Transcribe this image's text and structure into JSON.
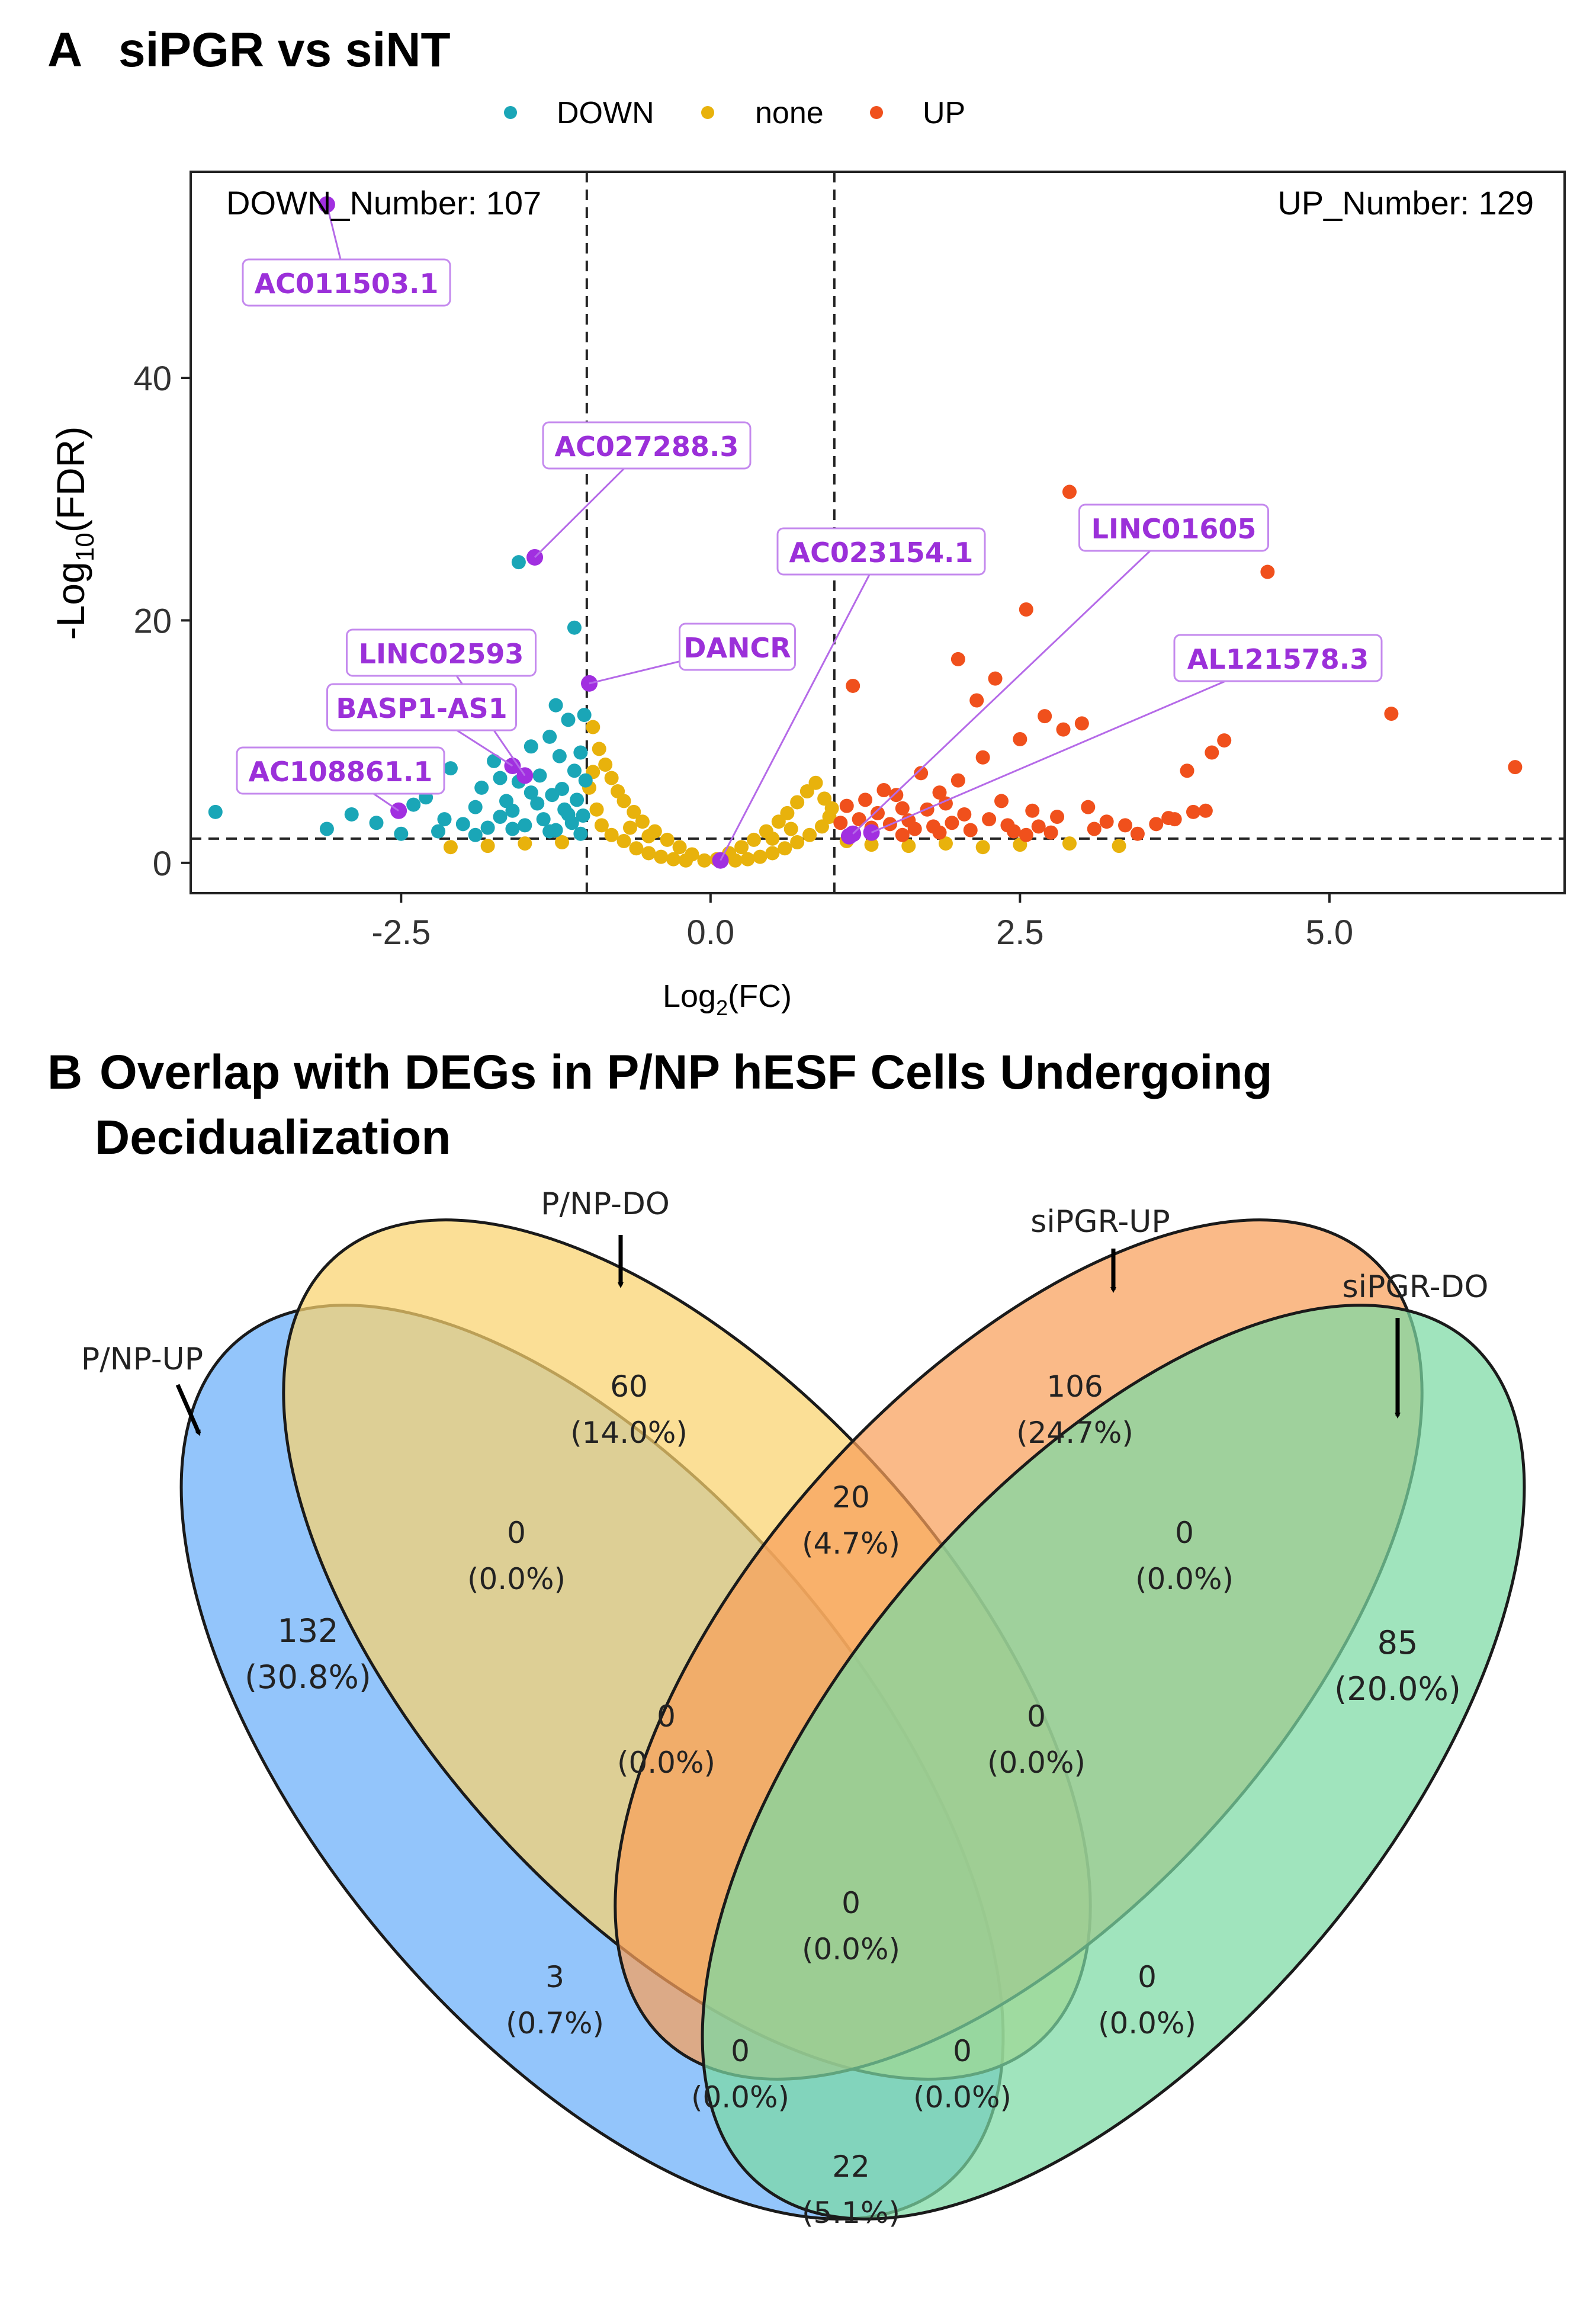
{
  "panel_a": {
    "letter": "A",
    "title": "siPGR vs siNT",
    "legend": [
      {
        "label": "DOWN",
        "color": "#1aa6b7"
      },
      {
        "label": "none",
        "color": "#e8b20c"
      },
      {
        "label": "UP",
        "color": "#f0501c"
      }
    ],
    "down_number_label": "DOWN_Number: 107",
    "up_number_label": "UP_Number: 129",
    "highlight_color": "#a12fe0"
  },
  "panel_b": {
    "letter": "B",
    "title_line1": "Overlap with DEGs in P/NP hESF Cells Undergoing",
    "title_line2": "Decidualization"
  },
  "chart_data": [
    {
      "type": "scatter",
      "title": "siPGR vs siNT",
      "xlabel_main": "Log",
      "xlabel_sub": "2",
      "xlabel_tail": "(FC)",
      "ylabel_main": "-Log",
      "ylabel_sub": "10",
      "ylabel_tail": "(FDR)",
      "xlim": [
        -4.2,
        6.9
      ],
      "ylim": [
        -2.5,
        57
      ],
      "xticks": [
        -2.5,
        0.0,
        2.5,
        5.0
      ],
      "xtick_labels": [
        "-2.5",
        "0.0",
        "2.5",
        "5.0"
      ],
      "yticks": [
        0,
        20,
        40
      ],
      "ytick_labels": [
        "0",
        "20",
        "40"
      ],
      "thresholds": {
        "log2fc": [
          -1,
          1
        ],
        "neg_log10_fdr": 2
      },
      "series": [
        {
          "name": "DOWN",
          "color": "#1aa6b7",
          "points": [
            [
              -4.0,
              4.2
            ],
            [
              -3.1,
              2.8
            ],
            [
              -2.9,
              4.0
            ],
            [
              -2.7,
              3.3
            ],
            [
              -2.5,
              2.4
            ],
            [
              -2.3,
              5.4
            ],
            [
              -2.2,
              2.6
            ],
            [
              -2.1,
              7.8
            ],
            [
              -2.0,
              3.2
            ],
            [
              -1.9,
              4.6
            ],
            [
              -1.85,
              6.2
            ],
            [
              -1.8,
              2.9
            ],
            [
              -1.75,
              8.4
            ],
            [
              -1.7,
              3.8
            ],
            [
              -1.65,
              5.1
            ],
            [
              -1.6,
              4.3
            ],
            [
              -1.55,
              6.7
            ],
            [
              -1.5,
              3.1
            ],
            [
              -1.45,
              9.6
            ],
            [
              -1.4,
              4.9
            ],
            [
              -1.38,
              7.2
            ],
            [
              -1.35,
              3.6
            ],
            [
              -1.3,
              10.4
            ],
            [
              -1.28,
              5.6
            ],
            [
              -1.25,
              2.7
            ],
            [
              -1.22,
              8.8
            ],
            [
              -1.2,
              6.1
            ],
            [
              -1.18,
              4.4
            ],
            [
              -1.15,
              11.8
            ],
            [
              -1.12,
              3.3
            ],
            [
              -1.1,
              7.6
            ],
            [
              -1.08,
              5.2
            ],
            [
              -1.05,
              9.1
            ],
            [
              -1.03,
              3.9
            ],
            [
              -1.02,
              12.2
            ],
            [
              -1.01,
              6.8
            ],
            [
              -1.1,
              19.4
            ],
            [
              -1.55,
              24.8
            ],
            [
              -1.05,
              2.4
            ],
            [
              -1.3,
              2.6
            ],
            [
              -1.6,
              2.8
            ],
            [
              -1.9,
              2.3
            ],
            [
              -2.15,
              3.6
            ],
            [
              -1.45,
              5.8
            ],
            [
              -1.7,
              7.0
            ],
            [
              -1.25,
              13.0
            ],
            [
              -1.15,
              4.0
            ],
            [
              -2.4,
              4.8
            ]
          ]
        },
        {
          "name": "none",
          "color": "#e8b20c",
          "points": [
            [
              -0.95,
              11.2
            ],
            [
              -0.9,
              9.4
            ],
            [
              -0.85,
              8.1
            ],
            [
              -0.8,
              7.0
            ],
            [
              -0.75,
              5.9
            ],
            [
              -0.7,
              5.1
            ],
            [
              -0.62,
              4.2
            ],
            [
              -0.55,
              3.4
            ],
            [
              -0.45,
              2.6
            ],
            [
              -0.35,
              1.9
            ],
            [
              -0.25,
              1.3
            ],
            [
              -0.15,
              0.7
            ],
            [
              -0.05,
              0.2
            ],
            [
              0.05,
              0.3
            ],
            [
              0.15,
              0.8
            ],
            [
              0.25,
              1.3
            ],
            [
              0.35,
              1.9
            ],
            [
              0.45,
              2.6
            ],
            [
              0.55,
              3.4
            ],
            [
              0.62,
              4.1
            ],
            [
              0.7,
              5.0
            ],
            [
              0.78,
              5.9
            ],
            [
              0.85,
              6.6
            ],
            [
              0.92,
              5.3
            ],
            [
              -0.98,
              6.2
            ],
            [
              -0.92,
              4.4
            ],
            [
              -0.88,
              3.1
            ],
            [
              -0.8,
              2.3
            ],
            [
              -0.7,
              1.8
            ],
            [
              -0.6,
              1.2
            ],
            [
              -0.5,
              0.8
            ],
            [
              -0.4,
              0.5
            ],
            [
              -0.3,
              0.3
            ],
            [
              -0.2,
              0.2
            ],
            [
              0.2,
              0.2
            ],
            [
              0.3,
              0.3
            ],
            [
              0.4,
              0.5
            ],
            [
              0.5,
              0.8
            ],
            [
              0.6,
              1.2
            ],
            [
              0.7,
              1.7
            ],
            [
              0.8,
              2.3
            ],
            [
              0.9,
              3.0
            ],
            [
              0.96,
              3.8
            ],
            [
              -1.5,
              1.6
            ],
            [
              -1.8,
              1.4
            ],
            [
              -2.1,
              1.3
            ],
            [
              -1.2,
              1.7
            ],
            [
              1.3,
              1.5
            ],
            [
              1.6,
              1.4
            ],
            [
              1.9,
              1.6
            ],
            [
              2.2,
              1.3
            ],
            [
              2.5,
              1.5
            ],
            [
              2.9,
              1.6
            ],
            [
              3.3,
              1.4
            ],
            [
              1.1,
              1.8
            ],
            [
              -0.65,
              2.9
            ],
            [
              -0.5,
              2.2
            ],
            [
              0.5,
              2.0
            ],
            [
              0.65,
              2.8
            ],
            [
              -0.95,
              7.5
            ],
            [
              0.98,
              4.5
            ]
          ]
        },
        {
          "name": "UP",
          "color": "#f0501c",
          "points": [
            [
              2.9,
              30.6
            ],
            [
              2.55,
              20.9
            ],
            [
              4.5,
              24.0
            ],
            [
              1.15,
              14.6
            ],
            [
              2.0,
              16.8
            ],
            [
              2.3,
              15.2
            ],
            [
              2.15,
              13.4
            ],
            [
              2.85,
              11.0
            ],
            [
              2.7,
              12.1
            ],
            [
              3.0,
              11.5
            ],
            [
              2.5,
              10.2
            ],
            [
              5.5,
              12.3
            ],
            [
              4.15,
              10.1
            ],
            [
              4.05,
              9.1
            ],
            [
              3.85,
              7.6
            ],
            [
              6.5,
              7.9
            ],
            [
              1.4,
              6.0
            ],
            [
              1.55,
              4.5
            ],
            [
              1.7,
              7.4
            ],
            [
              1.85,
              5.8
            ],
            [
              2.0,
              6.8
            ],
            [
              2.2,
              8.7
            ],
            [
              2.35,
              5.1
            ],
            [
              2.6,
              4.3
            ],
            [
              2.8,
              3.8
            ],
            [
              3.05,
              4.6
            ],
            [
              3.2,
              3.4
            ],
            [
              3.7,
              3.7
            ],
            [
              3.9,
              4.2
            ],
            [
              4.0,
              4.3
            ],
            [
              1.05,
              3.3
            ],
            [
              1.1,
              4.7
            ],
            [
              1.2,
              3.6
            ],
            [
              1.25,
              5.2
            ],
            [
              1.3,
              2.9
            ],
            [
              1.35,
              4.1
            ],
            [
              1.45,
              3.2
            ],
            [
              1.5,
              5.6
            ],
            [
              1.6,
              3.5
            ],
            [
              1.65,
              2.8
            ],
            [
              1.75,
              4.4
            ],
            [
              1.8,
              3.0
            ],
            [
              1.9,
              4.9
            ],
            [
              1.95,
              3.3
            ],
            [
              2.05,
              4.0
            ],
            [
              2.1,
              2.7
            ],
            [
              2.25,
              3.6
            ],
            [
              2.4,
              3.1
            ],
            [
              2.45,
              2.6
            ],
            [
              2.65,
              3.0
            ],
            [
              2.75,
              2.5
            ],
            [
              3.1,
              2.8
            ],
            [
              3.35,
              3.1
            ],
            [
              3.6,
              3.2
            ],
            [
              3.75,
              3.6
            ],
            [
              1.15,
              2.4
            ],
            [
              1.55,
              2.3
            ],
            [
              1.85,
              2.5
            ],
            [
              2.55,
              2.3
            ],
            [
              3.45,
              2.4
            ]
          ]
        },
        {
          "name": "highlight",
          "color": "#a12fe0",
          "points": [
            [
              -3.1,
              54.3
            ],
            [
              -1.42,
              25.2
            ],
            [
              -0.98,
              14.8
            ],
            [
              -1.5,
              7.2
            ],
            [
              -1.6,
              8.0
            ],
            [
              -2.52,
              4.3
            ],
            [
              0.08,
              0.2
            ],
            [
              1.15,
              2.4
            ],
            [
              1.3,
              2.5
            ],
            [
              1.12,
              2.2
            ]
          ]
        }
      ],
      "gene_labels": [
        {
          "gene": "AC011503.1",
          "x": -3.1,
          "y": 54.3
        },
        {
          "gene": "AC027288.3",
          "x": -1.42,
          "y": 25.2
        },
        {
          "gene": "DANCR",
          "x": -0.98,
          "y": 14.8
        },
        {
          "gene": "LINC02593",
          "x": -1.5,
          "y": 7.2
        },
        {
          "gene": "BASP1-AS1",
          "x": -1.6,
          "y": 8.0
        },
        {
          "gene": "AC108861.1",
          "x": -2.52,
          "y": 4.3
        },
        {
          "gene": "AC023154.1",
          "x": 0.08,
          "y": 0.2
        },
        {
          "gene": "LINC01605",
          "x": 1.15,
          "y": 2.4
        },
        {
          "gene": "AL121578.3",
          "x": 1.3,
          "y": 2.5
        }
      ]
    },
    {
      "type": "venn",
      "title": "Overlap with DEGs in P/NP hESF Cells Undergoing Decidualization",
      "sets": [
        {
          "name": "P/NP-UP",
          "color": "#6aaffa"
        },
        {
          "name": "P/NP-DO",
          "color": "#fad26e"
        },
        {
          "name": "siPGR-UP",
          "color": "#f8a05a"
        },
        {
          "name": "siPGR-DO",
          "color": "#7cdaa4"
        }
      ],
      "regions": [
        {
          "sets": [
            "P/NP-UP"
          ],
          "count": "132",
          "pct": "(30.8%)"
        },
        {
          "sets": [
            "P/NP-DO"
          ],
          "count": "60",
          "pct": "(14.0%)"
        },
        {
          "sets": [
            "siPGR-UP"
          ],
          "count": "106",
          "pct": "(24.7%)"
        },
        {
          "sets": [
            "siPGR-DO"
          ],
          "count": "85",
          "pct": "(20.0%)"
        },
        {
          "sets": [
            "P/NP-UP",
            "P/NP-DO"
          ],
          "count": "0",
          "pct": "(0.0%)"
        },
        {
          "sets": [
            "P/NP-DO",
            "siPGR-UP"
          ],
          "count": "20",
          "pct": "(4.7%)"
        },
        {
          "sets": [
            "siPGR-UP",
            "siPGR-DO"
          ],
          "count": "0",
          "pct": "(0.0%)"
        },
        {
          "sets": [
            "P/NP-UP",
            "P/NP-DO",
            "siPGR-UP"
          ],
          "count": "0",
          "pct": "(0.0%)"
        },
        {
          "sets": [
            "P/NP-DO",
            "siPGR-UP",
            "siPGR-DO"
          ],
          "count": "0",
          "pct": "(0.0%)"
        },
        {
          "sets": [
            "P/NP-UP",
            "P/NP-DO",
            "siPGR-UP",
            "siPGR-DO"
          ],
          "count": "0",
          "pct": "(0.0%)"
        },
        {
          "sets": [
            "P/NP-UP",
            "siPGR-UP"
          ],
          "count": "3",
          "pct": "(0.7%)"
        },
        {
          "sets": [
            "P/NP-DO",
            "siPGR-DO"
          ],
          "count": "0",
          "pct": "(0.0%)"
        },
        {
          "sets": [
            "P/NP-UP",
            "siPGR-UP",
            "siPGR-DO"
          ],
          "count": "0",
          "pct": "(0.0%)"
        },
        {
          "sets": [
            "P/NP-UP",
            "P/NP-DO",
            "siPGR-DO"
          ],
          "count": "0",
          "pct": "(0.0%)"
        },
        {
          "sets": [
            "P/NP-UP",
            "siPGR-DO"
          ],
          "count": "22",
          "pct": "(5.1%)"
        }
      ]
    }
  ]
}
